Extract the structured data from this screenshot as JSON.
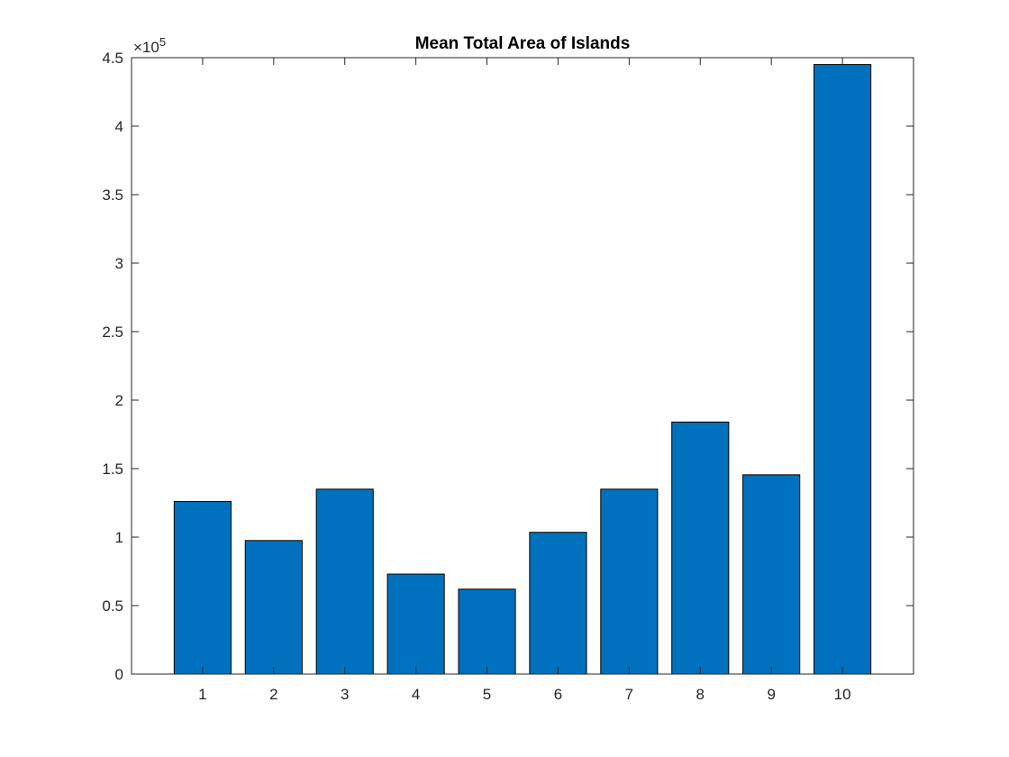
{
  "chart_data": {
    "type": "bar",
    "title": "Mean Total Area of Islands",
    "xlabel": "",
    "ylabel": "",
    "categories": [
      "1",
      "2",
      "3",
      "4",
      "5",
      "6",
      "7",
      "8",
      "9",
      "10"
    ],
    "values": [
      126000,
      97500,
      135000,
      73000,
      62000,
      103500,
      135000,
      184000,
      145500,
      445000
    ],
    "ylim": [
      0,
      450000
    ],
    "yticks": [
      0,
      50000,
      100000,
      150000,
      200000,
      250000,
      300000,
      350000,
      400000,
      450000
    ],
    "ytick_labels": [
      "0",
      "0.5",
      "1",
      "1.5",
      "2",
      "2.5",
      "3",
      "3.5",
      "4",
      "4.5"
    ],
    "y_exponent_base": "×10",
    "y_exponent_power": "5",
    "bar_color": "#0072BD",
    "grid": false,
    "legend": "none"
  }
}
